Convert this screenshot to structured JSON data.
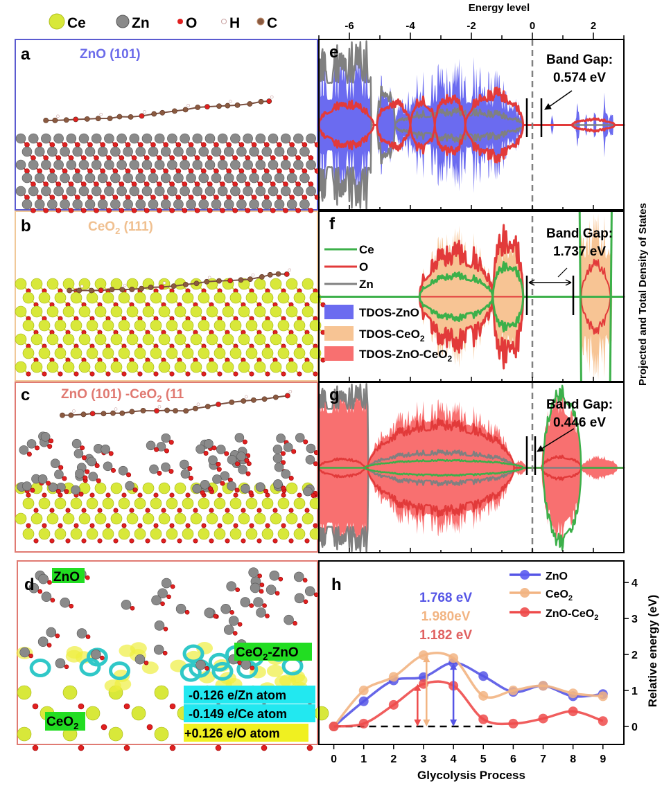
{
  "atom_legend": [
    {
      "label": "Ce",
      "color": "#d8e83a"
    },
    {
      "label": "Zn",
      "color": "#8a8a8a"
    },
    {
      "label": "O",
      "color": "#e02020"
    },
    {
      "label": "H",
      "color": "#f0e0e0"
    },
    {
      "label": "C",
      "color": "#8a5a40"
    }
  ],
  "panels": {
    "a": {
      "letter": "a",
      "title": "ZnO (101)",
      "border": "#5b5bd0",
      "title_color": "#6b6bea"
    },
    "b": {
      "letter": "b",
      "title": "CeO",
      "title_sub": "2",
      "title_tail": " (111)",
      "border": "#f0c898",
      "title_color": "#f0c090"
    },
    "c": {
      "letter": "c",
      "title": "ZnO (101) -CeO",
      "title_sub": "2",
      "title_tail": " (11",
      "border": "#e07a72",
      "title_color": "#e07870"
    },
    "d": {
      "letter": "d",
      "border": "#e07a72",
      "labels": {
        "zno": "ZnO",
        "ceo2_zno": "CeO",
        "ceo2_zno_sub": "2",
        "ceo2_zno_tail": "-ZnO",
        "ceo2": "CeO",
        "ceo2_sub": "2"
      },
      "charges": [
        "-0.126 e/Zn atom",
        "-0.149 e/Ce atom",
        "+0.126 e/O atom"
      ]
    }
  },
  "dos": {
    "xlabel": "Energy level",
    "ylabel": "Projected and Total Density of States",
    "xlim": [
      -7,
      3
    ],
    "ticks": [
      "-6",
      "-4",
      "-2",
      "0",
      "2"
    ],
    "fermi_level": 0,
    "panels": [
      {
        "letter": "e",
        "band_gap_label": "Band Gap:",
        "band_gap": "0.574 eV"
      },
      {
        "letter": "f",
        "band_gap_label": "Band Gap:",
        "band_gap": "1.737 eV"
      },
      {
        "letter": "g",
        "band_gap_label": "Band Gap:",
        "band_gap": "0.446 eV"
      }
    ],
    "legend_lines": [
      {
        "label": "Ce",
        "color": "#3cb04a"
      },
      {
        "label": "O",
        "color": "#e23a3a"
      },
      {
        "label": "Zn",
        "color": "#808080"
      }
    ],
    "legend_fills": [
      {
        "label": "TDOS-ZnO",
        "color": "#6b6bf0"
      },
      {
        "label": "TDOS-CeO",
        "sub": "2",
        "color": "#f7c494"
      },
      {
        "label": "TDOS-ZnO-CeO",
        "sub": "2",
        "color": "#f87070"
      }
    ]
  },
  "chart_data": {
    "type": "line",
    "letter": "h",
    "xlabel": "Glycolysis Process",
    "ylabel": "Relative energy (eV)",
    "x": [
      0,
      1,
      2,
      3,
      4,
      5,
      6,
      7,
      8,
      9
    ],
    "xlim": [
      -0.5,
      9.7
    ],
    "ylim": [
      -0.5,
      4.6
    ],
    "yticks": [
      0,
      1,
      2,
      3,
      4
    ],
    "series": [
      {
        "name": "ZnO",
        "color": "#5555e6",
        "values": [
          0,
          0.7,
          1.28,
          1.37,
          1.77,
          1.4,
          0.96,
          1.13,
          0.84,
          0.9
        ]
      },
      {
        "name": "CeO",
        "name_sub": "2",
        "color": "#f2b482",
        "values": [
          0,
          1.0,
          1.38,
          1.98,
          1.9,
          0.85,
          1.0,
          1.13,
          0.92,
          0.84
        ]
      },
      {
        "name": "ZnO-CeO",
        "name_sub": "2",
        "color": "#ee4b4b",
        "values": [
          0,
          0.08,
          0.6,
          1.18,
          1.13,
          0.2,
          0.08,
          0.22,
          0.42,
          0.15
        ]
      }
    ],
    "annotations": [
      {
        "text": "1.768 eV",
        "color": "#5555e6",
        "x": 4,
        "barrier": 1.768
      },
      {
        "text": "1.980eV",
        "color": "#f2b482",
        "x": 3.1,
        "barrier": 1.98
      },
      {
        "text": "1.182 eV",
        "color": "#ee4b4b",
        "x": 2.8,
        "barrier": 1.182
      }
    ],
    "reference_line": 0,
    "legend_position": "top-right"
  }
}
